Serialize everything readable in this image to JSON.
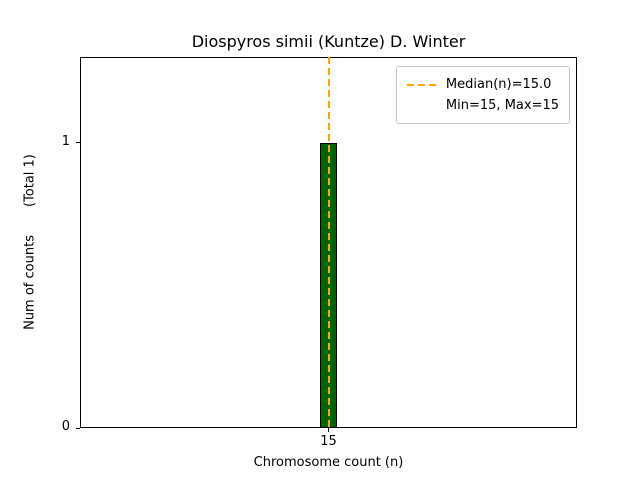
{
  "chart_data": {
    "type": "bar",
    "title": "Diospyros simii (Kuntze) D. Winter",
    "xlabel": "Chromosome count (n)",
    "ylabel": "Num of counts",
    "ylabel_total": "(Total 1)",
    "categories": [
      15
    ],
    "values": [
      1
    ],
    "bar_width": 0.07,
    "xlim": [
      14,
      16
    ],
    "ylim": [
      0,
      1.3
    ],
    "x_ticks": [
      15
    ],
    "x_tick_labels": [
      "15"
    ],
    "y_ticks": [
      0,
      1
    ],
    "y_tick_labels": [
      "0",
      "1"
    ],
    "grid": false,
    "bar_color": "#006400",
    "bar_edge_color": "#000000",
    "median_line": {
      "x": 15,
      "color": "#ffa500",
      "style": "dashed"
    },
    "legend": {
      "position": "upper right",
      "entries": [
        {
          "label": "Median(n)=15.0",
          "marker": "dashed-line",
          "color": "#ffa500"
        },
        {
          "label": "Min=15, Max=15",
          "marker": "none",
          "color": null
        }
      ]
    }
  }
}
